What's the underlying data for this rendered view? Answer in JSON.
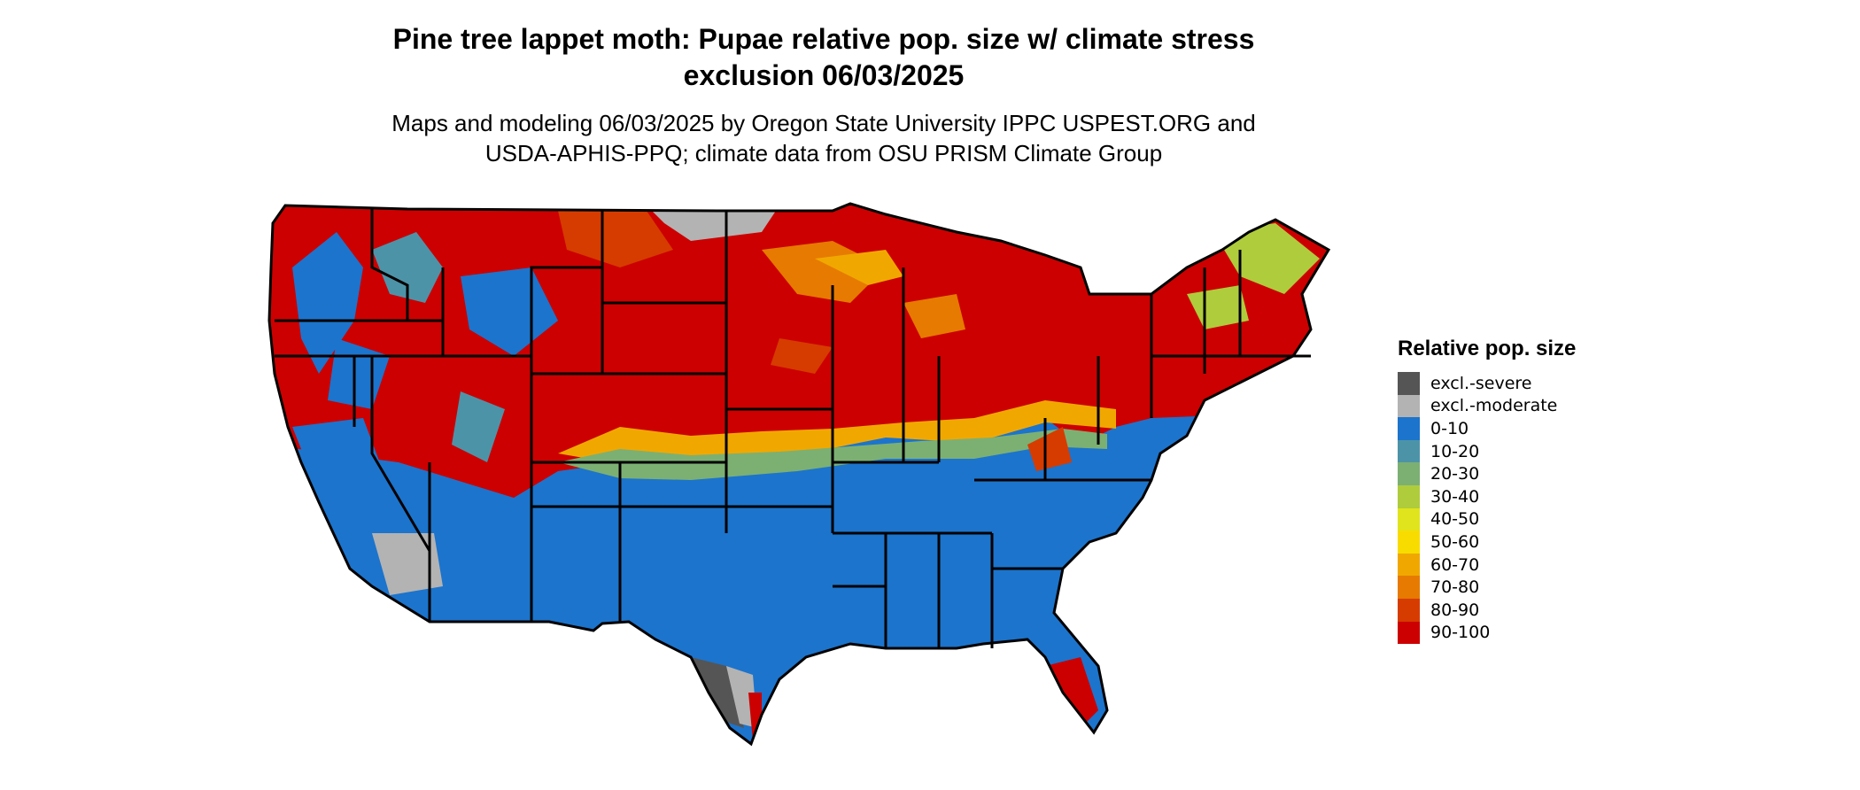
{
  "title_line1": "Pine tree lappet moth: Pupae relative pop. size w/ climate stress",
  "title_line2": "exclusion 06/03/2025",
  "subtitle_line1": "Maps and modeling 06/03/2025 by Oregon State University IPPC USPEST.ORG and",
  "subtitle_line2": "USDA-APHIS-PPQ; climate data from OSU PRISM Climate Group",
  "legend": {
    "title": "Relative pop. size",
    "items": [
      {
        "label": "excl.-severe",
        "color": "#555555"
      },
      {
        "label": "excl.-moderate",
        "color": "#b3b3b3"
      },
      {
        "label": "0-10",
        "color": "#1c74cc"
      },
      {
        "label": "10-20",
        "color": "#4d93a8"
      },
      {
        "label": "20-30",
        "color": "#7cb073"
      },
      {
        "label": "30-40",
        "color": "#afcc3c"
      },
      {
        "label": "40-50",
        "color": "#e0e41c"
      },
      {
        "label": "50-60",
        "color": "#f8dc00"
      },
      {
        "label": "60-70",
        "color": "#f0a800"
      },
      {
        "label": "70-80",
        "color": "#e77a00"
      },
      {
        "label": "80-90",
        "color": "#d63c00"
      },
      {
        "label": "90-100",
        "color": "#cc0000"
      }
    ]
  }
}
